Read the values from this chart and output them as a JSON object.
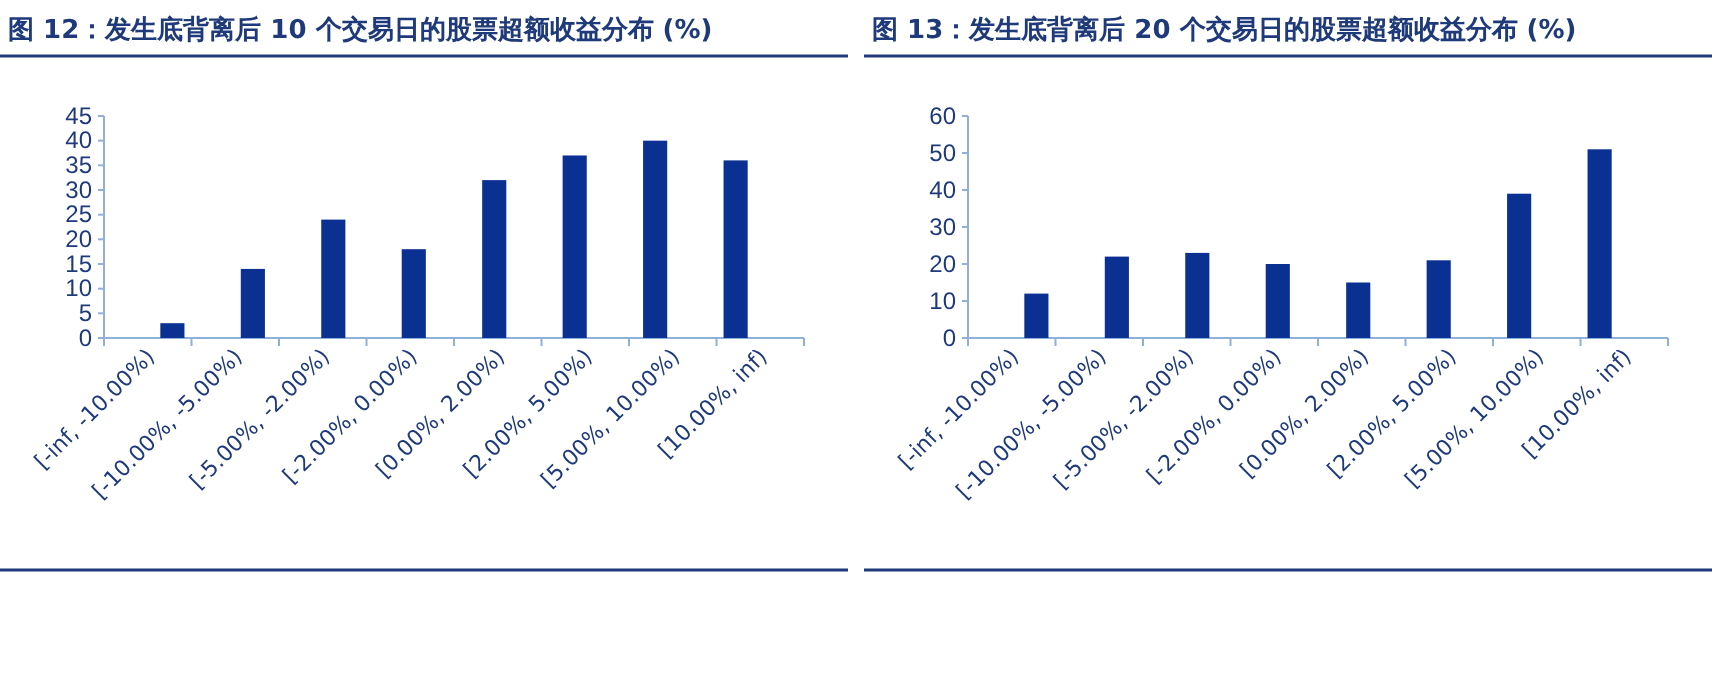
{
  "chart_data": [
    {
      "type": "bar",
      "title": "图 12：发生底背离后 10 个交易日的股票超额收益分布 (%)",
      "categories": [
        "[-inf, -10.00%)",
        "[-10.00%, -5.00%)",
        "[-5.00%, -2.00%)",
        "[-2.00%, 0.00%)",
        "[0.00%, 2.00%)",
        "[2.00%, 5.00%)",
        "[5.00%, 10.00%)",
        "[10.00%, inf)"
      ],
      "series": [
        {
          "color": "#0a3092",
          "values": [
            3,
            14,
            24,
            18,
            32,
            37,
            40,
            36
          ]
        }
      ],
      "ylim": [
        0,
        45
      ],
      "yticks": [
        0,
        5,
        10,
        15,
        20,
        25,
        30,
        35,
        40,
        45
      ],
      "grid": false
    },
    {
      "type": "bar",
      "title": "图 13：发生底背离后 20 个交易日的股票超额收益分布 (%)",
      "categories": [
        "[-inf, -10.00%)",
        "[-10.00%, -5.00%)",
        "[-5.00%, -2.00%)",
        "[-2.00%, 0.00%)",
        "[0.00%, 2.00%)",
        "[2.00%, 5.00%)",
        "[5.00%, 10.00%)",
        "[10.00%, inf)"
      ],
      "series": [
        {
          "color": "#0a3092",
          "values": [
            12,
            22,
            23,
            20,
            15,
            21,
            39,
            51
          ]
        }
      ],
      "ylim": [
        0,
        60
      ],
      "yticks": [
        0,
        10,
        20,
        30,
        40,
        50,
        60
      ],
      "grid": false
    }
  ]
}
